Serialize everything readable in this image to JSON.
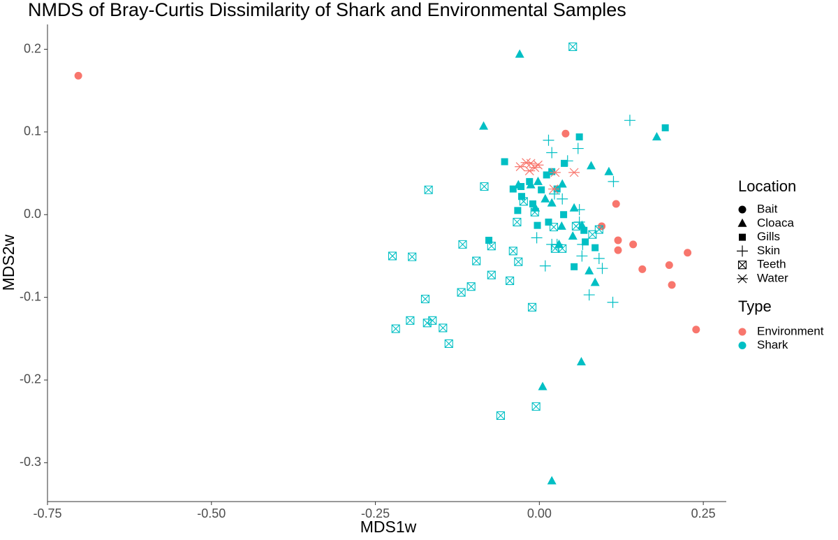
{
  "chart_data": {
    "type": "scatter",
    "title": "NMDS of Bray-Curtis Dissimilarity of Shark and Environmental Samples",
    "x_label": "MDS1w",
    "y_label": "MDS2w",
    "xlim": [
      -0.75,
      0.285
    ],
    "ylim": [
      -0.347,
      0.23
    ],
    "xticks": [
      {
        "value": -0.75,
        "label": "-0.75"
      },
      {
        "value": -0.5,
        "label": "-0.50"
      },
      {
        "value": -0.25,
        "label": "-0.25"
      },
      {
        "value": 0,
        "label": "0.00"
      },
      {
        "value": 0.25,
        "label": "0.25"
      }
    ],
    "yticks": [
      0.2,
      0.1,
      {
        "value": 0,
        "label": "0.0"
      },
      -0.1,
      -0.2,
      -0.3
    ],
    "grid": false,
    "shape_legend_title": "Location",
    "color_legend": {
      "title": "Type",
      "entries": [
        {
          "name": "Environment",
          "color": "#f8766d"
        },
        {
          "name": "Shark",
          "color": "#00bfc4"
        }
      ]
    },
    "series": [
      {
        "name": "Bait",
        "shape": "circle",
        "color": "#f8766d",
        "x": [
          -0.703,
          0.04,
          0.117,
          0.095,
          0.12,
          0.12,
          0.143,
          0.157,
          0.226,
          0.198,
          0.202,
          0.239
        ],
        "values": [
          0.168,
          0.098,
          0.013,
          -0.014,
          -0.031,
          -0.043,
          -0.036,
          -0.066,
          -0.046,
          -0.061,
          -0.085,
          -0.139
        ]
      },
      {
        "name": "Cloaca",
        "shape": "triangle",
        "color": "#00bfc4",
        "x": [
          -0.03,
          -0.085,
          0.179,
          0.079,
          0.106,
          0.053,
          0.065,
          0.034,
          0.051,
          0.03,
          0.085,
          0.076,
          0.064,
          0.005,
          0.019,
          0.009,
          0.019,
          -0.006,
          -0.013,
          0.035,
          -0.032,
          -0.002
        ],
        "values": [
          0.194,
          0.107,
          0.094,
          0.059,
          0.052,
          0.008,
          -0.013,
          -0.014,
          -0.026,
          -0.036,
          -0.082,
          -0.068,
          -0.178,
          -0.208,
          -0.322,
          0.019,
          0.014,
          0.008,
          0.036,
          0.037,
          0.036,
          0.04
        ]
      },
      {
        "name": "Gills",
        "shape": "square",
        "color": "#00bfc4",
        "x": [
          0.192,
          0.061,
          -0.053,
          0.038,
          -0.028,
          -0.04,
          -0.027,
          -0.033,
          -0.077,
          0.085,
          0.053,
          0.07,
          -0.003,
          -0.015,
          0.011,
          0.019,
          -0.01,
          0.014,
          0.037,
          0.068,
          0.003,
          0.027
        ],
        "values": [
          0.105,
          0.094,
          0.064,
          0.062,
          0.034,
          0.031,
          0.022,
          0.005,
          -0.031,
          -0.04,
          -0.063,
          -0.033,
          -0.013,
          0.04,
          0.048,
          0.052,
          0.013,
          -0.009,
          0.0,
          -0.019,
          0.03,
          0.031
        ]
      },
      {
        "name": "Skin",
        "shape": "plus",
        "color": "#00bfc4",
        "x": [
          0.138,
          0.014,
          0.059,
          0.113,
          0.061,
          0.061,
          0.023,
          -0.004,
          0.027,
          0.065,
          0.009,
          0.096,
          0.076,
          0.112,
          0.066,
          0.043,
          0.019,
          0.035,
          0.019,
          0.091
        ],
        "values": [
          0.114,
          0.09,
          0.08,
          0.04,
          0.006,
          -0.009,
          0.025,
          -0.028,
          -0.036,
          -0.05,
          -0.062,
          -0.065,
          -0.097,
          -0.106,
          -0.036,
          0.065,
          0.075,
          0.019,
          -0.036,
          -0.053
        ]
      },
      {
        "name": "Teeth",
        "shape": "boxx",
        "color": "#00bfc4",
        "x": [
          0.051,
          -0.169,
          -0.084,
          -0.224,
          -0.194,
          -0.117,
          -0.073,
          -0.096,
          -0.034,
          -0.04,
          -0.032,
          -0.045,
          -0.073,
          -0.104,
          -0.119,
          -0.174,
          -0.197,
          -0.163,
          -0.171,
          -0.219,
          -0.147,
          -0.138,
          -0.011,
          -0.005,
          -0.059,
          0.024,
          0.035,
          0.091,
          0.081,
          -0.024,
          -0.007,
          0.022,
          0.056
        ],
        "values": [
          0.203,
          0.03,
          0.034,
          -0.05,
          -0.051,
          -0.036,
          -0.038,
          -0.056,
          -0.009,
          -0.044,
          -0.057,
          -0.08,
          -0.073,
          -0.087,
          -0.094,
          -0.102,
          -0.128,
          -0.128,
          -0.131,
          -0.138,
          -0.137,
          -0.156,
          -0.112,
          -0.232,
          -0.243,
          -0.041,
          -0.041,
          -0.018,
          -0.024,
          0.016,
          0.003,
          -0.015,
          -0.014
        ]
      },
      {
        "name": "Water",
        "shape": "asterisk",
        "color": "#f8766d",
        "x": [
          -0.029,
          -0.02,
          -0.013,
          -0.007,
          -0.002,
          -0.015,
          0.024,
          0.053,
          0.022
        ],
        "values": [
          0.058,
          0.063,
          0.062,
          0.057,
          0.06,
          0.053,
          0.051,
          0.051,
          0.031
        ]
      }
    ]
  }
}
